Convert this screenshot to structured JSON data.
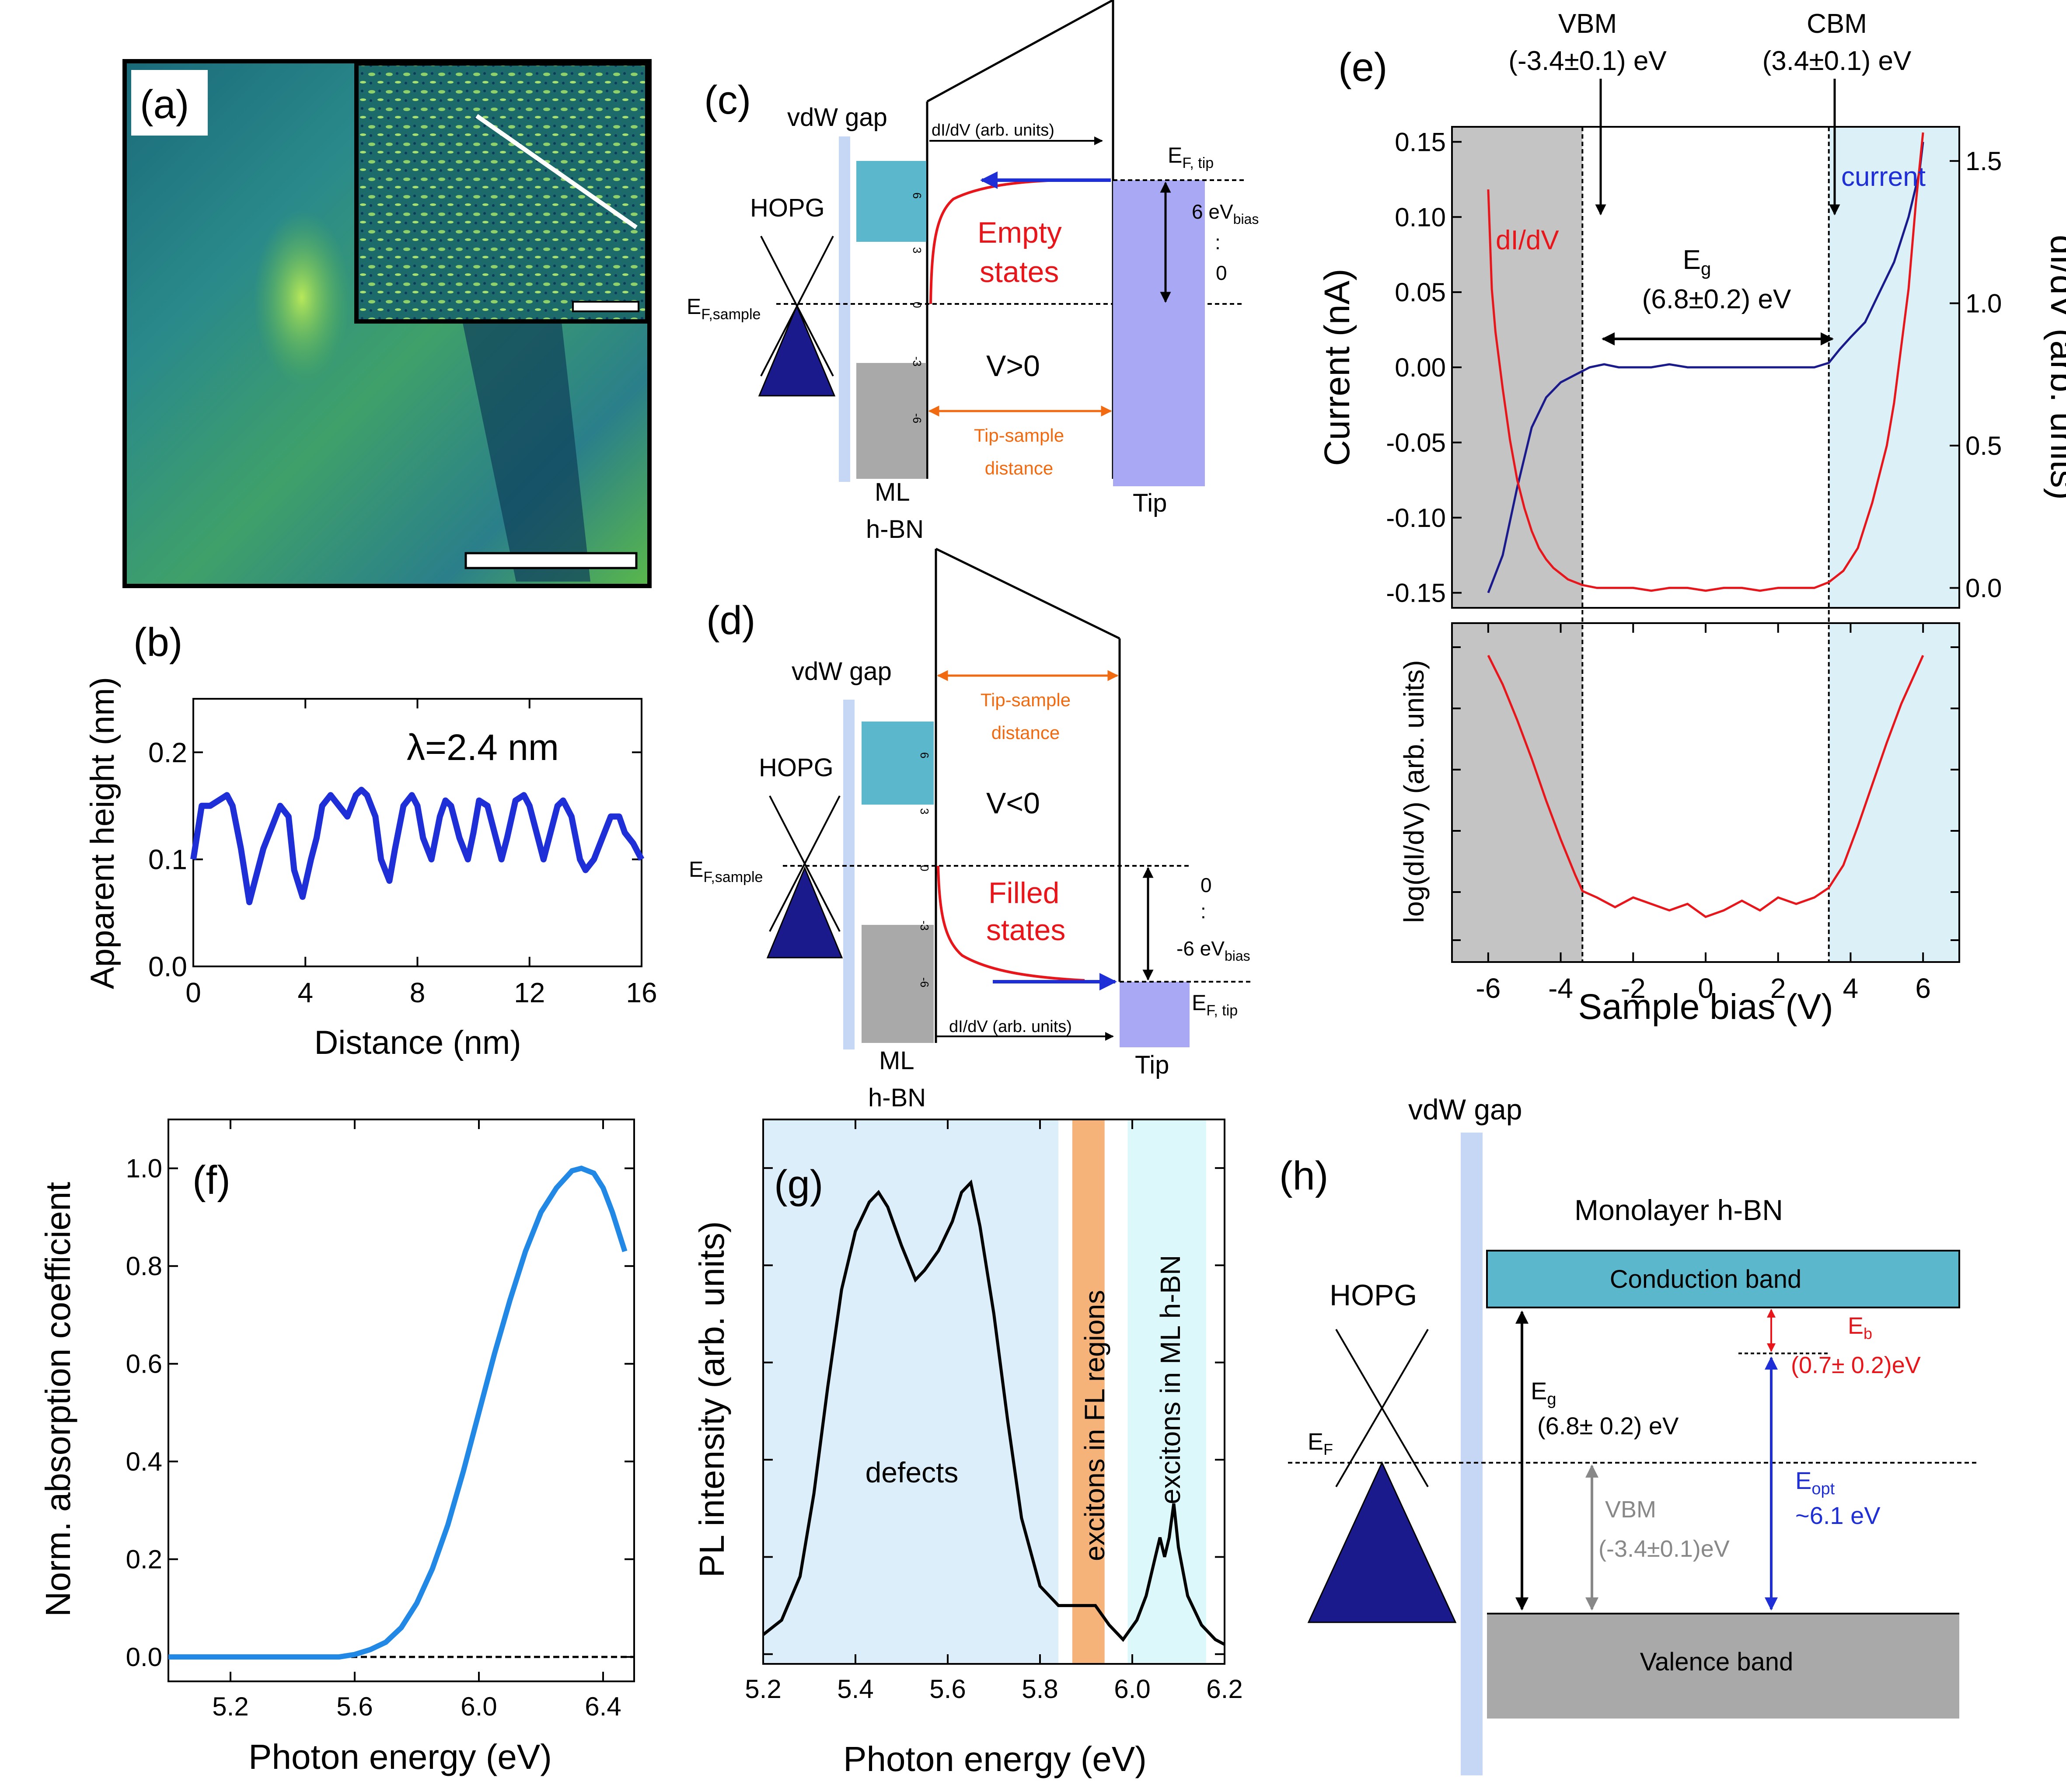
{
  "panels": {
    "a": {
      "label": "(a)"
    },
    "b": {
      "label": "(b)",
      "annotation": "λ=2.4 nm"
    },
    "c": {
      "label": "(c)",
      "vdw_gap": "vdW gap",
      "hopg": "HOPG",
      "ef_sample": "E",
      "ef_sample_sub": "F,sample",
      "didv_axis": "dI/dV (arb. units)",
      "ef_tip": "E",
      "ef_tip_sub": "F, tip",
      "states1": "Empty",
      "states2": "states",
      "voltage": "V>0",
      "tip_sample1": "Tip-sample",
      "tip_sample2": "distance",
      "bias_top": "6 eV",
      "bias_top_sub": "bias",
      "bias_dots": ":",
      "bias_bottom": "0",
      "ml1": "ML",
      "ml2": "h-BN",
      "tip": "Tip",
      "ticks": [
        "6",
        "3",
        "0",
        "-3",
        "-6"
      ]
    },
    "d": {
      "label": "(d)",
      "vdw_gap": "vdW gap",
      "hopg": "HOPG",
      "ef_sample": "E",
      "ef_sample_sub": "F,sample",
      "didv_axis": "dI/dV (arb. units)",
      "ef_tip": "E",
      "ef_tip_sub": "F, tip",
      "states1": "Filled",
      "states2": "states",
      "voltage": "V<0",
      "tip_sample1": "Tip-sample",
      "tip_sample2": "distance",
      "bias_top": "0",
      "bias_dots": ":",
      "bias_bottom": "-6 eV",
      "bias_bottom_sub": "bias",
      "ml1": "ML",
      "ml2": "h-BN",
      "tip": "Tip",
      "ticks": [
        "6",
        "3",
        "0",
        "-3",
        "-6"
      ]
    },
    "e": {
      "label": "(e)",
      "vbm": "VBM",
      "vbm_val": "(-3.4±0.1) eV",
      "cbm": "CBM",
      "cbm_val": "(3.4±0.1) eV",
      "eg": "E",
      "eg_sub": "g",
      "eg_val": "(6.8±0.2) eV",
      "didv_label": "dI/dV",
      "current_label": "current"
    },
    "f": {
      "label": "(f)"
    },
    "g": {
      "label": "(g)",
      "region_defects": "defects",
      "region_fl": "excitons in FL regions",
      "region_ml": "excitons in ML h-BN"
    },
    "h": {
      "label": "(h)",
      "vdw_gap": "vdW gap",
      "monolayer": "Monolayer h-BN",
      "conduction": "Conduction band",
      "valence": "Valence band",
      "hopg": "HOPG",
      "ef": "E",
      "ef_sub": "F",
      "eg": "E",
      "eg_sub": "g",
      "eg_val": "(6.8± 0.2) eV",
      "vbm": "VBM",
      "vbm_val": "(-3.4±0.1)eV",
      "eb": "E",
      "eb_sub": "b",
      "eb_val": "(0.7± 0.2)eV",
      "eopt": "E",
      "eopt_sub": "opt",
      "eopt_val": "~6.1 eV"
    }
  },
  "colors": {
    "blue_line": "#1f2fd8",
    "red": "#e8161b",
    "navy": "#1a1a8c",
    "teal": "#5bb8cc",
    "gray": "#a9a9a9",
    "light_blue": "#dbeefa",
    "light_cyan": "#ddf8fb",
    "orange": "#f5b37a",
    "tip": "#a8a8f5",
    "vdw": "#c6d7f5",
    "abs_line": "#2288e6",
    "orange_text": "#f26a10"
  },
  "chart_data": [
    {
      "id": "b",
      "type": "line",
      "xlabel": "Distance (nm)",
      "ylabel": "Apparent height (nm)",
      "xlim": [
        0,
        16
      ],
      "ylim": [
        0,
        0.25
      ],
      "xticks": [
        "0",
        "4",
        "8",
        "12",
        "16"
      ],
      "yticks": [
        "0.0",
        "0.1",
        "0.2"
      ],
      "x": [
        0,
        0.3,
        0.6,
        0.9,
        1.2,
        1.4,
        1.7,
        2.0,
        2.2,
        2.5,
        2.8,
        3.1,
        3.4,
        3.6,
        3.9,
        4.2,
        4.4,
        4.6,
        4.9,
        5.2,
        5.5,
        5.8,
        6.0,
        6.2,
        6.5,
        6.7,
        7.0,
        7.2,
        7.5,
        7.8,
        8.0,
        8.2,
        8.5,
        8.8,
        9.0,
        9.2,
        9.5,
        9.8,
        10.0,
        10.2,
        10.5,
        10.8,
        11.0,
        11.2,
        11.5,
        11.8,
        12.0,
        12.3,
        12.5,
        12.8,
        13.0,
        13.2,
        13.5,
        13.8,
        14.0,
        14.3,
        14.6,
        14.9,
        15.2,
        15.4,
        15.7,
        16.0
      ],
      "y": [
        0.1,
        0.15,
        0.15,
        0.155,
        0.16,
        0.15,
        0.11,
        0.06,
        0.08,
        0.11,
        0.13,
        0.15,
        0.14,
        0.09,
        0.065,
        0.1,
        0.12,
        0.15,
        0.16,
        0.15,
        0.14,
        0.16,
        0.165,
        0.16,
        0.14,
        0.1,
        0.08,
        0.11,
        0.15,
        0.16,
        0.15,
        0.12,
        0.1,
        0.14,
        0.155,
        0.15,
        0.12,
        0.1,
        0.125,
        0.155,
        0.15,
        0.12,
        0.1,
        0.12,
        0.155,
        0.16,
        0.15,
        0.12,
        0.1,
        0.13,
        0.15,
        0.155,
        0.14,
        0.1,
        0.09,
        0.1,
        0.12,
        0.14,
        0.14,
        0.125,
        0.115,
        0.1
      ]
    },
    {
      "id": "e",
      "type": "line",
      "xlabel": "Sample bias (V)",
      "ylabel_top_left": "Current (nA)",
      "ylabel_top_right": "dI/dV (arb. units)",
      "ylabel_bottom": "log(dI/dV) (arb. units)",
      "xlim": [
        -7,
        7
      ],
      "ylim_current": [
        -0.16,
        0.16
      ],
      "ylim_didv": [
        -0.07,
        1.62
      ],
      "xticks": [
        "-6",
        "-4",
        "-2",
        "0",
        "2",
        "4",
        "6"
      ],
      "yticks_current": [
        "-0.15",
        "-0.10",
        "-0.05",
        "0.00",
        "0.05",
        "0.10",
        "0.15"
      ],
      "yticks_didv": [
        "0.0",
        "0.5",
        "1.0",
        "1.5"
      ],
      "vbm_x": -3.4,
      "cbm_x": 3.4,
      "series": [
        {
          "name": "current",
          "x": [
            -6,
            -5.6,
            -5.2,
            -4.8,
            -4.4,
            -4.0,
            -3.6,
            -3.2,
            -2.8,
            -2.4,
            -2.0,
            -1.5,
            -1.0,
            -0.5,
            0,
            0.5,
            1.0,
            1.5,
            2.0,
            2.5,
            3.0,
            3.4,
            3.7,
            4.0,
            4.4,
            4.8,
            5.2,
            5.6,
            5.9,
            6.0
          ],
          "y": [
            -0.15,
            -0.125,
            -0.08,
            -0.04,
            -0.02,
            -0.01,
            -0.005,
            0.0,
            0.002,
            0.0,
            0.0,
            0.0,
            0.002,
            0.0,
            0.0,
            0.0,
            0.0,
            0.0,
            0.0,
            0.0,
            0.0,
            0.003,
            0.012,
            0.02,
            0.03,
            0.05,
            0.07,
            0.1,
            0.13,
            0.15
          ]
        },
        {
          "name": "dI/dV",
          "x": [
            -6,
            -5.9,
            -5.8,
            -5.6,
            -5.4,
            -5.2,
            -5.0,
            -4.8,
            -4.6,
            -4.4,
            -4.2,
            -4.0,
            -3.8,
            -3.6,
            -3.4,
            -3.0,
            -2.5,
            -2.0,
            -1.5,
            -1.0,
            -0.5,
            0,
            0.5,
            1.0,
            1.5,
            2.0,
            2.5,
            3.0,
            3.4,
            3.8,
            4.2,
            4.6,
            5.0,
            5.2,
            5.4,
            5.6,
            5.8,
            6.0
          ],
          "y": [
            1.4,
            1.05,
            0.9,
            0.7,
            0.52,
            0.38,
            0.28,
            0.2,
            0.14,
            0.1,
            0.07,
            0.05,
            0.03,
            0.02,
            0.01,
            0.0,
            0.0,
            0.0,
            -0.01,
            0.0,
            0.0,
            -0.01,
            0.0,
            0.0,
            -0.01,
            0.0,
            0.0,
            0.0,
            0.02,
            0.06,
            0.14,
            0.3,
            0.5,
            0.65,
            0.85,
            1.05,
            1.35,
            1.6
          ]
        },
        {
          "name": "log(dI/dV)",
          "x": [
            -6,
            -5.6,
            -5.2,
            -4.8,
            -4.4,
            -4.0,
            -3.6,
            -3.4,
            -3.0,
            -2.5,
            -2.0,
            -1.5,
            -1.0,
            -0.5,
            0,
            0.5,
            1.0,
            1.5,
            2.0,
            2.5,
            3.0,
            3.4,
            3.8,
            4.2,
            4.6,
            5.0,
            5.4,
            5.8,
            6.0
          ],
          "y": [
            0.95,
            0.86,
            0.75,
            0.63,
            0.5,
            0.38,
            0.27,
            0.22,
            0.2,
            0.17,
            0.2,
            0.18,
            0.16,
            0.18,
            0.14,
            0.16,
            0.19,
            0.16,
            0.2,
            0.18,
            0.2,
            0.23,
            0.3,
            0.42,
            0.55,
            0.68,
            0.8,
            0.9,
            0.95
          ]
        }
      ]
    },
    {
      "id": "f",
      "type": "line",
      "xlabel": "Photon energy (eV)",
      "ylabel": "Norm. absorption coefficient",
      "xlim": [
        5.0,
        6.5
      ],
      "ylim": [
        -0.05,
        1.1
      ],
      "xticks": [
        "5.2",
        "5.6",
        "6.0",
        "6.4"
      ],
      "yticks": [
        "0.0",
        "0.2",
        "0.4",
        "0.6",
        "0.8",
        "1.0"
      ],
      "x": [
        5.0,
        5.3,
        5.55,
        5.6,
        5.65,
        5.7,
        5.75,
        5.8,
        5.85,
        5.9,
        5.95,
        6.0,
        6.05,
        6.1,
        6.15,
        6.2,
        6.25,
        6.3,
        6.33,
        6.37,
        6.4,
        6.43,
        6.47
      ],
      "y": [
        0,
        0,
        0,
        0.005,
        0.015,
        0.03,
        0.06,
        0.11,
        0.18,
        0.27,
        0.38,
        0.5,
        0.62,
        0.73,
        0.83,
        0.91,
        0.96,
        0.995,
        1.0,
        0.99,
        0.96,
        0.91,
        0.83
      ]
    },
    {
      "id": "g",
      "type": "line",
      "xlabel": "Photon energy (eV)",
      "ylabel": "PL intensity (arb. units)",
      "xlim": [
        5.2,
        6.2
      ],
      "ylim": [
        -0.02,
        1.1
      ],
      "xticks": [
        "5.2",
        "5.4",
        "5.6",
        "5.8",
        "6.0",
        "6.2"
      ],
      "x": [
        5.2,
        5.24,
        5.28,
        5.31,
        5.34,
        5.37,
        5.4,
        5.43,
        5.45,
        5.47,
        5.5,
        5.53,
        5.55,
        5.58,
        5.61,
        5.63,
        5.65,
        5.67,
        5.7,
        5.73,
        5.76,
        5.8,
        5.84,
        5.88,
        5.92,
        5.95,
        5.98,
        6.01,
        6.03,
        6.05,
        6.06,
        6.07,
        6.08,
        6.09,
        6.1,
        6.12,
        6.15,
        6.18,
        6.2
      ],
      "y": [
        0.04,
        0.07,
        0.16,
        0.33,
        0.55,
        0.75,
        0.87,
        0.93,
        0.95,
        0.92,
        0.84,
        0.77,
        0.79,
        0.83,
        0.89,
        0.95,
        0.97,
        0.88,
        0.7,
        0.48,
        0.28,
        0.14,
        0.1,
        0.1,
        0.1,
        0.06,
        0.03,
        0.07,
        0.12,
        0.2,
        0.24,
        0.2,
        0.24,
        0.31,
        0.22,
        0.12,
        0.06,
        0.03,
        0.02
      ]
    }
  ],
  "regions_g": {
    "defects": [
      5.2,
      5.84
    ],
    "fl": [
      5.87,
      5.94
    ],
    "ml": [
      5.99,
      6.16
    ]
  }
}
